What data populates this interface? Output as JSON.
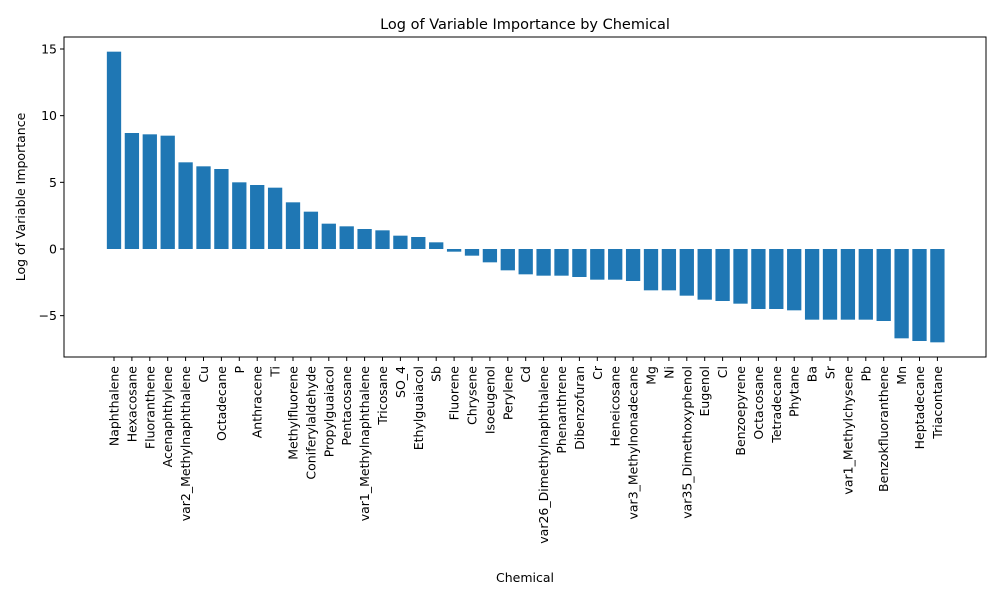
{
  "chart_data": {
    "type": "bar",
    "title": "Log of Variable Importance by Chemical",
    "xlabel": "Chemical",
    "ylabel": "Log of Variable Importance",
    "ylim": [
      -8.1,
      15.9
    ],
    "yticks": [
      -5,
      0,
      5,
      10,
      15
    ],
    "grid": false,
    "bar_color": "#1f77b4",
    "categories": [
      "Naphthalene",
      "Hexacosane",
      "Fluoranthene",
      "Acenaphthylene",
      "var2_Methylnaphthalene",
      "Cu",
      "Octadecane",
      "P",
      "Anthracene",
      "Ti",
      "Methylfluorene",
      "Coniferylaldehyde",
      "Propylguaiacol",
      "Pentacosane",
      "var1_Methylnaphthalene",
      "Tricosane",
      "SO_4",
      "Ethylguaiacol",
      "Sb",
      "Fluorene",
      "Chrysene",
      "Isoeugenol",
      "Perylene",
      "Cd",
      "var26_Dimethylnaphthalene",
      "Phenanthrene",
      "Dibenzofuran",
      "Cr",
      "Heneicosane",
      "var3_Methylnonadecane",
      "Mg",
      "Ni",
      "var35_Dimethoxyphenol",
      "Eugenol",
      "Cl",
      "Benzoepyrene",
      "Octacosane",
      "Tetradecane",
      "Phytane",
      "Ba",
      "Sr",
      "var1_Methylchysene",
      "Pb",
      "Benzokfluoranthene",
      "Mn",
      "Heptadecane",
      "Triacontane"
    ],
    "values": [
      14.8,
      8.7,
      8.6,
      8.5,
      6.5,
      6.2,
      6.0,
      5.0,
      4.8,
      4.6,
      3.5,
      2.8,
      1.9,
      1.7,
      1.5,
      1.4,
      1.0,
      0.9,
      0.5,
      -0.2,
      -0.5,
      -1.0,
      -1.6,
      -1.9,
      -2.0,
      -2.0,
      -2.1,
      -2.3,
      -2.3,
      -2.4,
      -3.1,
      -3.1,
      -3.5,
      -3.8,
      -3.9,
      -4.1,
      -4.5,
      -4.5,
      -4.6,
      -5.3,
      -5.3,
      -5.3,
      -5.3,
      -5.4,
      -6.7,
      -6.9,
      -7.0
    ]
  }
}
